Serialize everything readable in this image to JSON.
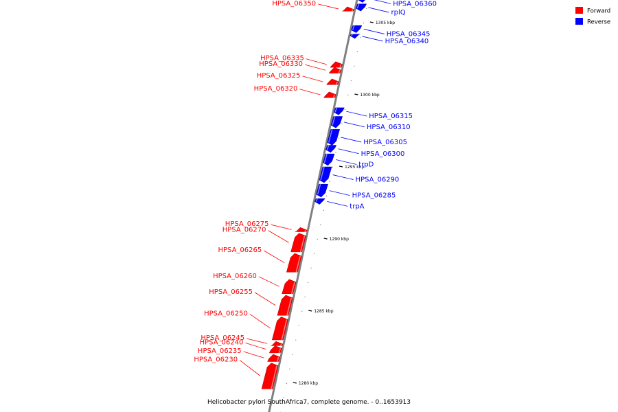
{
  "caption": "Helicobacter pylori SouthAfrica7, complete genome. - 0..1653913",
  "legend": [
    {
      "name": "Forward",
      "color": "#ff0000"
    },
    {
      "name": "Reverse",
      "color": "#0000ff"
    }
  ],
  "colors": {
    "forward": "#ff0000",
    "reverse": "#0000ff",
    "backbone": "#808080"
  },
  "ticks": [
    "1305 kbp",
    "1300 kbp",
    "1295 kbp",
    "1290 kbp",
    "1285 kbp",
    "1280 kbp"
  ],
  "forward_genes": [
    {
      "label": "HPSA_06350",
      "start": 1306.1,
      "end": 1305.8
    },
    {
      "label": "HPSA_06335",
      "start": 1302.3,
      "end": 1301.9
    },
    {
      "label": "HPSA_06330",
      "start": 1301.9,
      "end": 1301.5
    },
    {
      "label": "HPSA_06325",
      "start": 1301.1,
      "end": 1300.7
    },
    {
      "label": "HPSA_06320",
      "start": 1300.2,
      "end": 1299.8
    },
    {
      "label": "HPSA_06275",
      "start": 1290.8,
      "end": 1290.5
    },
    {
      "label": "HPSA_06270",
      "start": 1290.4,
      "end": 1289.1
    },
    {
      "label": "HPSA_06265",
      "start": 1289.0,
      "end": 1287.7
    },
    {
      "label": "HPSA_06260",
      "start": 1287.2,
      "end": 1286.2
    },
    {
      "label": "HPSA_06255",
      "start": 1286.1,
      "end": 1284.7
    },
    {
      "label": "HPSA_06250",
      "start": 1284.6,
      "end": 1283.0
    },
    {
      "label": "HPSA_06245",
      "start": 1282.9,
      "end": 1282.6
    },
    {
      "label": "HPSA_06240",
      "start": 1282.6,
      "end": 1282.1
    },
    {
      "label": "HPSA_06235",
      "start": 1282.0,
      "end": 1281.5
    },
    {
      "label": "HPSA_06230",
      "start": 1281.4,
      "end": 1279.6
    }
  ],
  "reverse_genes": [
    {
      "label": "HPSA_06360",
      "start": 1306.9,
      "end": 1306.4
    },
    {
      "label": "rplQ",
      "start": 1306.3,
      "end": 1305.8
    },
    {
      "label": "HPSA_06345",
      "start": 1304.8,
      "end": 1304.3
    },
    {
      "label": "HPSA_06340",
      "start": 1304.2,
      "end": 1303.9
    },
    {
      "label": "HPSA_06315",
      "start": 1299.1,
      "end": 1298.6
    },
    {
      "label": "HPSA_06310",
      "start": 1298.5,
      "end": 1297.7
    },
    {
      "label": "HPSA_06305",
      "start": 1297.6,
      "end": 1296.5
    },
    {
      "label": "HPSA_06300",
      "start": 1296.5,
      "end": 1296.0
    },
    {
      "label": "trpD",
      "start": 1295.9,
      "end": 1295.1
    },
    {
      "label": "HPSA_06290",
      "start": 1295.0,
      "end": 1293.9
    },
    {
      "label": "HPSA_06285",
      "start": 1293.8,
      "end": 1292.9
    },
    {
      "label": "trpA",
      "start": 1292.8,
      "end": 1292.4
    }
  ]
}
